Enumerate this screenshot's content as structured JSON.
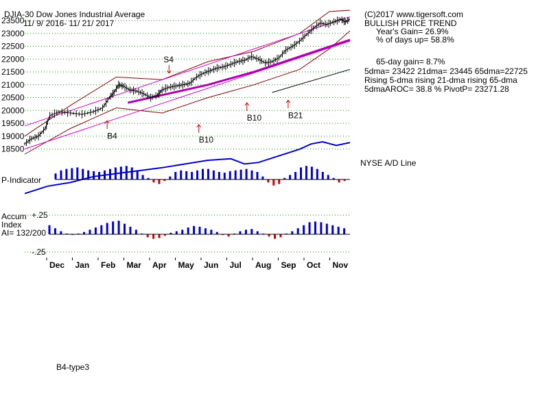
{
  "header": {
    "ticker": "DJIA-30  Dow Jones Industrial Average",
    "date_range": "11/ 9/ 2016- 11/ 21/ 2017",
    "copyright": "(C)2017 www.tigersoft.com",
    "trend": "BULLISH PRICE TREND",
    "years_gain": "Year's Gain= 26.9%",
    "pct_days_up": "% of days up= 58.8%",
    "gain_65": "65-day gain= 8.7%",
    "dma_line": "5dma= 23422 21dma= 23445 65dma=22725",
    "rising_line": "Rising 5-dma rising 21-dma rising 65-dma",
    "aroc_line": "5dmaAROC= 38.8 %  PivotP= 23271.28"
  },
  "labels": {
    "nyse_ad": "NYSE A/D Line",
    "p_indicator": "P-Indicator",
    "accum_1": "Accum",
    "accum_2": "Index",
    "accum_3": "AI= 132/200",
    "footer": "B4-type3"
  },
  "colors": {
    "price": "#000000",
    "band": "#800000",
    "channel": "#cc00cc",
    "ma65": "#b000b0",
    "ad_line": "#0000cc",
    "pos_bar": "#0000cc",
    "neg_bar": "#cc0000",
    "signal_arrow": "#cc0000",
    "grid": "#008000"
  },
  "chart_data": {
    "type": "line",
    "title": "DJIA-30  Dow Jones Industrial Average",
    "y_ticks": [
      18500,
      19000,
      19500,
      20000,
      20500,
      21000,
      21500,
      22000,
      22500,
      23000,
      23500
    ],
    "ylim": [
      18300,
      23900
    ],
    "x_months": [
      "Dec",
      "Jan",
      "Feb",
      "Mar",
      "Apr",
      "May",
      "Jun",
      "Jul",
      "Aug",
      "Sep",
      "Oct",
      "Nov"
    ],
    "price_series": [
      [
        0,
        18700
      ],
      [
        0.3,
        18900
      ],
      [
        0.6,
        19000
      ],
      [
        0.9,
        19300
      ],
      [
        1.1,
        19800
      ],
      [
        1.5,
        19950
      ],
      [
        2,
        19900
      ],
      [
        2.5,
        19850
      ],
      [
        3,
        19950
      ],
      [
        3.4,
        20100
      ],
      [
        3.7,
        20500
      ],
      [
        3.9,
        20700
      ],
      [
        4.1,
        21000
      ],
      [
        4.3,
        20950
      ],
      [
        4.6,
        20800
      ],
      [
        4.9,
        20750
      ],
      [
        5.2,
        20650
      ],
      [
        5.5,
        20500
      ],
      [
        5.8,
        20600
      ],
      [
        6,
        20800
      ],
      [
        6.3,
        20900
      ],
      [
        6.6,
        20950
      ],
      [
        6.9,
        21000
      ],
      [
        7.2,
        21050
      ],
      [
        7.5,
        21300
      ],
      [
        7.8,
        21450
      ],
      [
        8.1,
        21550
      ],
      [
        8.4,
        21650
      ],
      [
        8.7,
        21700
      ],
      [
        9,
        21800
      ],
      [
        9.3,
        21900
      ],
      [
        9.6,
        21950
      ],
      [
        9.9,
        22100
      ],
      [
        10.2,
        22000
      ],
      [
        10.5,
        21850
      ],
      [
        10.8,
        21900
      ],
      [
        11.1,
        22050
      ],
      [
        11.4,
        22350
      ],
      [
        11.7,
        22500
      ],
      [
        12,
        22700
      ],
      [
        12.3,
        22950
      ],
      [
        12.6,
        23200
      ],
      [
        12.9,
        23400
      ],
      [
        13.2,
        23350
      ],
      [
        13.5,
        23450
      ],
      [
        13.8,
        23550
      ],
      [
        14,
        23450
      ],
      [
        14.2,
        23550
      ]
    ],
    "upper_band": [
      [
        0,
        19000
      ],
      [
        2,
        20200
      ],
      [
        4,
        21300
      ],
      [
        6,
        21200
      ],
      [
        8,
        21900
      ],
      [
        10,
        22300
      ],
      [
        12,
        23000
      ],
      [
        13.3,
        23850
      ],
      [
        14.2,
        23900
      ]
    ],
    "lower_band": [
      [
        0,
        18300
      ],
      [
        2,
        19300
      ],
      [
        4,
        20100
      ],
      [
        6,
        19900
      ],
      [
        8,
        20500
      ],
      [
        10,
        21000
      ],
      [
        12,
        21600
      ],
      [
        13.3,
        22400
      ],
      [
        14.2,
        23100
      ]
    ],
    "channel_upper": [
      [
        0,
        19400
      ],
      [
        14.2,
        23650
      ]
    ],
    "channel_lower": [
      [
        0,
        18500
      ],
      [
        14.2,
        22700
      ]
    ],
    "ma65": [
      [
        4.5,
        20300
      ],
      [
        6,
        20600
      ],
      [
        8,
        21000
      ],
      [
        10,
        21500
      ],
      [
        12,
        22100
      ],
      [
        14.2,
        22750
      ]
    ],
    "trend_line": [
      [
        10.8,
        20700
      ],
      [
        14.2,
        21600
      ]
    ],
    "signals": [
      {
        "label": "S4",
        "x": 6.3,
        "y": 21450,
        "dir": "down"
      },
      {
        "label": "B4",
        "x": 3.6,
        "y": 19600,
        "dir": "up"
      },
      {
        "label": "B10",
        "x": 7.6,
        "y": 19450,
        "dir": "up"
      },
      {
        "label": "B10",
        "x": 9.7,
        "y": 20300,
        "dir": "up"
      },
      {
        "label": "B21",
        "x": 11.5,
        "y": 20400,
        "dir": "up"
      }
    ],
    "ad_line": [
      [
        0,
        0.05
      ],
      [
        1,
        0.15
      ],
      [
        2,
        0.2
      ],
      [
        3,
        0.28
      ],
      [
        4,
        0.32
      ],
      [
        5,
        0.36
      ],
      [
        6,
        0.4
      ],
      [
        7,
        0.45
      ],
      [
        8,
        0.5
      ],
      [
        9,
        0.52
      ],
      [
        9.6,
        0.45
      ],
      [
        10.2,
        0.47
      ],
      [
        11,
        0.55
      ],
      [
        12,
        0.65
      ],
      [
        12.5,
        0.72
      ],
      [
        13,
        0.75
      ],
      [
        13.6,
        0.7
      ],
      [
        14.2,
        0.74
      ]
    ],
    "p_indicator": [
      0.4,
      0.6,
      0.7,
      0.75,
      0.8,
      0.7,
      0.6,
      0.55,
      0.5,
      0.6,
      0.7,
      0.8,
      0.85,
      0.9,
      0.8,
      0.6,
      0.3,
      0.1,
      -0.2,
      -0.3,
      -0.1,
      0.2,
      0.5,
      0.6,
      0.55,
      0.5,
      0.6,
      0.7,
      0.7,
      0.6,
      0.5,
      0.45,
      0.55,
      0.6,
      0.65,
      0.7,
      0.6,
      0.5,
      0.2,
      -0.2,
      -0.4,
      -0.3,
      0.1,
      0.3,
      0.5,
      0.8,
      0.9,
      0.85,
      0.7,
      0.5,
      0.3,
      0.1,
      -0.2,
      -0.1
    ],
    "accum_index": [
      0.6,
      0.4,
      0.2,
      0.05,
      -0.05,
      0.05,
      0.15,
      0.3,
      0.45,
      0.6,
      0.75,
      0.85,
      0.9,
      0.7,
      0.5,
      0.3,
      0.05,
      -0.2,
      -0.3,
      -0.25,
      -0.1,
      0.1,
      0.2,
      0.3,
      0.45,
      0.55,
      0.5,
      0.4,
      0.3,
      0.15,
      -0.05,
      -0.15,
      0.05,
      0.2,
      0.3,
      0.35,
      0.2,
      0.05,
      -0.15,
      -0.3,
      -0.2,
      0.05,
      0.2,
      0.4,
      0.6,
      0.8,
      0.85,
      0.8,
      0.7,
      0.6,
      0.5,
      0.4
    ],
    "ai_ticks": [
      "+.25",
      "-.25"
    ]
  }
}
